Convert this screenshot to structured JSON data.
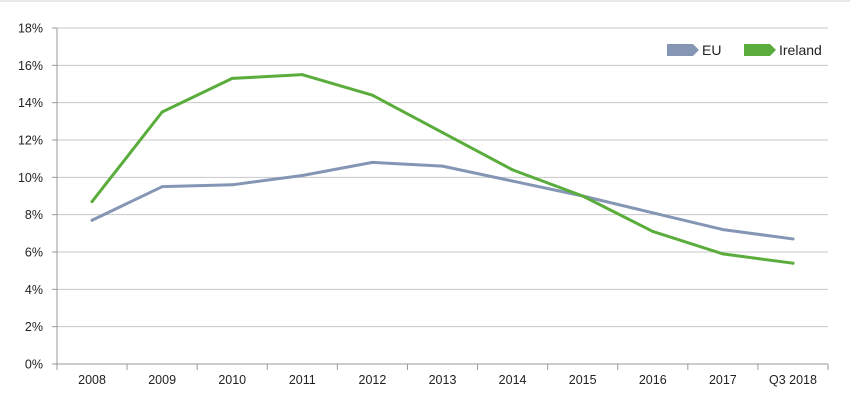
{
  "chart_data": {
    "type": "line",
    "categories": [
      "2008",
      "2009",
      "2010",
      "2011",
      "2012",
      "2013",
      "2014",
      "2015",
      "2016",
      "2017",
      "Q3 2018"
    ],
    "series": [
      {
        "name": "EU",
        "color": "#8596b5",
        "values": [
          7.7,
          9.5,
          9.6,
          10.1,
          10.8,
          10.6,
          9.8,
          9.0,
          8.1,
          7.2,
          6.7
        ]
      },
      {
        "name": "Ireland",
        "color": "#5aad3c",
        "values": [
          8.7,
          13.5,
          15.3,
          15.5,
          14.4,
          12.4,
          10.4,
          9.0,
          7.1,
          5.9,
          5.4
        ]
      }
    ],
    "yticks": [
      "0%",
      "2%",
      "4%",
      "6%",
      "8%",
      "10%",
      "12%",
      "14%",
      "16%",
      "18%"
    ],
    "ylim": [
      0,
      18
    ],
    "grid": true,
    "legend": "top-right",
    "title": "",
    "xlabel": "",
    "ylabel": ""
  }
}
